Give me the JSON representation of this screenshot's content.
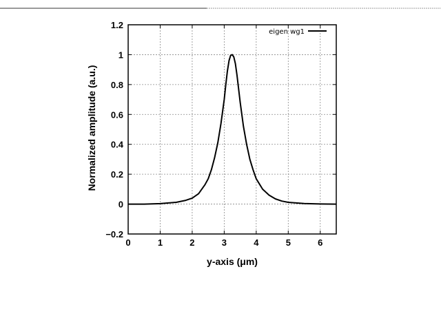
{
  "chart_data": {
    "type": "line",
    "xlabel": "y-axis (μm)",
    "ylabel": "Normalized amplitude (a.u.)",
    "xlim": [
      0,
      6.5
    ],
    "ylim": [
      -0.2,
      1.2
    ],
    "xticks": [
      0,
      1,
      2,
      3,
      4,
      5,
      6
    ],
    "yticks": [
      -0.2,
      0,
      0.2,
      0.4,
      0.6,
      0.8,
      1,
      1.2
    ],
    "xtick_labels": [
      "0",
      "1",
      "2",
      "3",
      "4",
      "5",
      "6"
    ],
    "ytick_labels": [
      "−0.2",
      "0",
      "0.2",
      "0.4",
      "0.6",
      "0.8",
      "1",
      "1.2"
    ],
    "grid": true,
    "legend_position": "top-right",
    "series": [
      {
        "name": "eigen wg1",
        "color": "#000000",
        "x": [
          0,
          0.5,
          1.0,
          1.5,
          1.8,
          2.0,
          2.2,
          2.4,
          2.5,
          2.6,
          2.7,
          2.8,
          2.9,
          3.0,
          3.05,
          3.1,
          3.15,
          3.2,
          3.25,
          3.3,
          3.35,
          3.4,
          3.5,
          3.6,
          3.7,
          3.8,
          3.9,
          4.0,
          4.2,
          4.4,
          4.6,
          4.8,
          5.0,
          5.5,
          6.0,
          6.5
        ],
        "y": [
          0.0,
          0.0,
          0.003,
          0.012,
          0.025,
          0.04,
          0.07,
          0.13,
          0.17,
          0.23,
          0.31,
          0.41,
          0.54,
          0.7,
          0.8,
          0.89,
          0.96,
          0.995,
          1.0,
          0.985,
          0.94,
          0.86,
          0.68,
          0.52,
          0.4,
          0.3,
          0.23,
          0.17,
          0.1,
          0.06,
          0.035,
          0.02,
          0.012,
          0.004,
          0.001,
          0.0
        ]
      }
    ]
  }
}
